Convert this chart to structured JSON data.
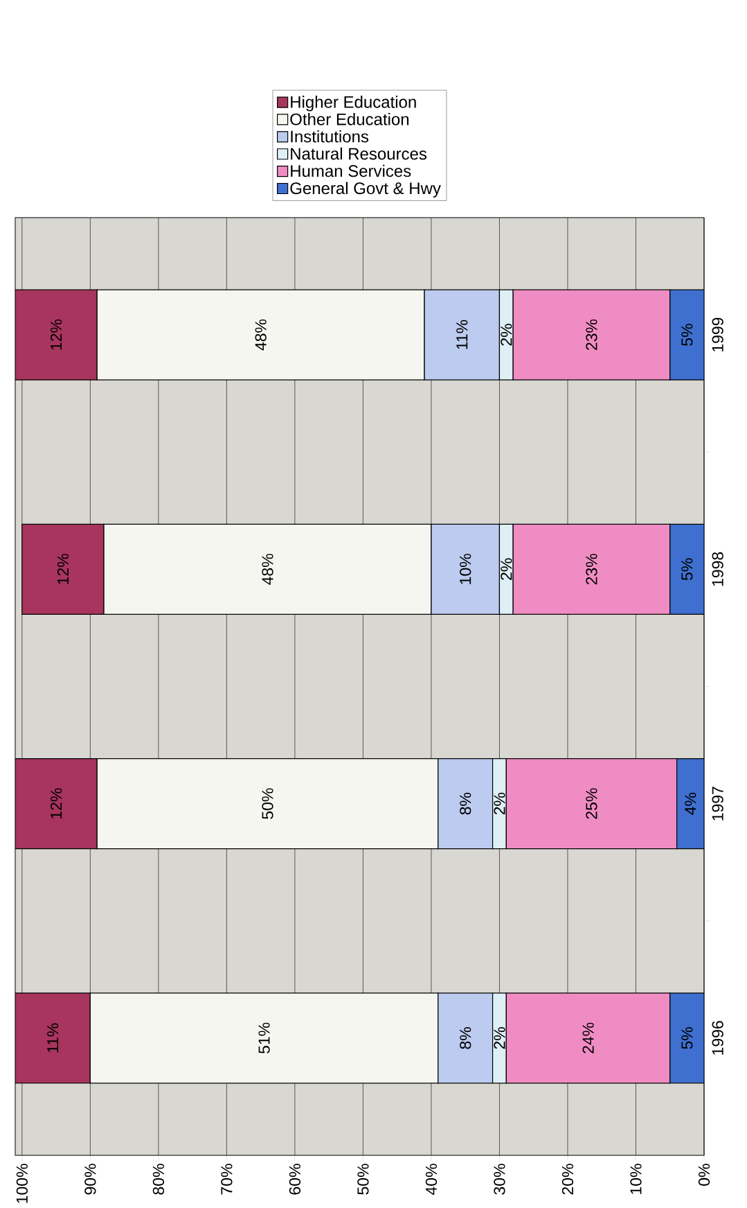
{
  "chart_data": {
    "type": "bar",
    "stacked": true,
    "orientation": "horizontal",
    "categories": [
      "1999",
      "1998",
      "1997",
      "1996"
    ],
    "series": [
      {
        "name": "General Govt & Hwy",
        "color": "#3f6fcf",
        "values": [
          5,
          5,
          4,
          5
        ],
        "value_labels": [
          "5%",
          "5%",
          "4%",
          "5%"
        ]
      },
      {
        "name": "Human Services",
        "color": "#f08cc4",
        "values": [
          23,
          23,
          25,
          24
        ],
        "value_labels": [
          "23%",
          "23%",
          "25%",
          "24%"
        ]
      },
      {
        "name": "Natural Resources",
        "color": "#def0f6",
        "values": [
          2,
          2,
          2,
          2
        ],
        "value_labels": [
          "2%",
          "2%",
          "2%",
          "2%"
        ]
      },
      {
        "name": "Institutions",
        "color": "#bccbef",
        "values": [
          11,
          10,
          8,
          8
        ],
        "value_labels": [
          "11%",
          "10%",
          "8%",
          "8%"
        ]
      },
      {
        "name": "Other Education",
        "color": "#f6f6f1",
        "values": [
          48,
          48,
          50,
          51
        ],
        "value_labels": [
          "48%",
          "48%",
          "50%",
          "51%"
        ]
      },
      {
        "name": "Higher Education",
        "color": "#a8355e",
        "values": [
          12,
          12,
          12,
          11
        ],
        "value_labels": [
          "12%",
          "12%",
          "12%",
          "11%"
        ]
      }
    ],
    "xlim": [
      101,
      0
    ],
    "xticks": [
      {
        "value": 0,
        "label": "0%"
      },
      {
        "value": 10,
        "label": "10%"
      },
      {
        "value": 20,
        "label": "20%"
      },
      {
        "value": 30,
        "label": "30%"
      },
      {
        "value": 40,
        "label": "40%"
      },
      {
        "value": 50,
        "label": "50%"
      },
      {
        "value": 60,
        "label": "60%"
      },
      {
        "value": 70,
        "label": "70%"
      },
      {
        "value": 80,
        "label": "80%"
      },
      {
        "value": 90,
        "label": "90%"
      },
      {
        "value": 100,
        "label": "100%"
      }
    ],
    "grid": "x",
    "legend": "top"
  }
}
